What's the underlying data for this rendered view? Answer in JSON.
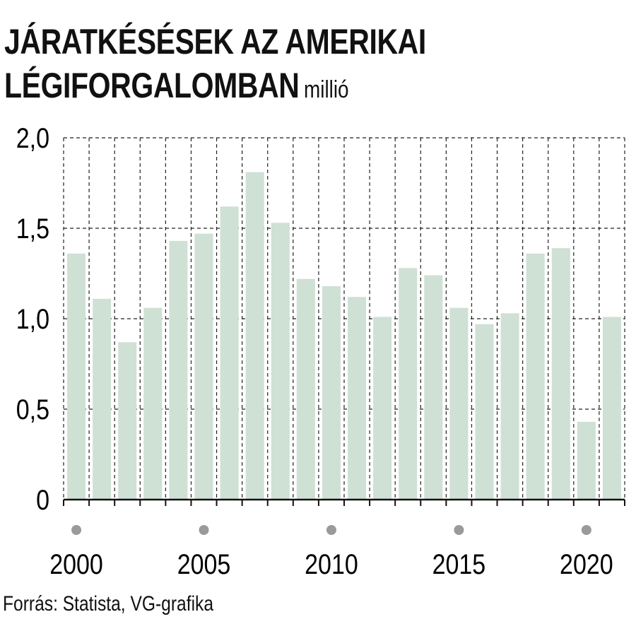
{
  "chart_data": {
    "type": "bar",
    "title_line1": "JÁRATKÉSÉSEK AZ AMERIKAI",
    "title_line2": "LÉGIFORGALOMBAN",
    "unit": "millió",
    "source": "Forrás: Statista, VG-grafika",
    "x": [
      2000,
      2001,
      2002,
      2003,
      2004,
      2005,
      2006,
      2007,
      2008,
      2009,
      2010,
      2011,
      2012,
      2013,
      2014,
      2015,
      2016,
      2017,
      2018,
      2019,
      2020,
      2021
    ],
    "values": [
      1.36,
      1.11,
      0.87,
      1.06,
      1.43,
      1.47,
      1.62,
      1.81,
      1.53,
      1.22,
      1.18,
      1.12,
      1.01,
      1.28,
      1.24,
      1.06,
      0.97,
      1.03,
      1.36,
      1.39,
      0.43,
      1.01
    ],
    "ylim": [
      0,
      2.0
    ],
    "yticks": [
      0,
      0.5,
      1.0,
      1.5,
      2.0
    ],
    "ytick_labels": [
      "0",
      "0,5",
      "1,0",
      "1,5",
      "2,0"
    ],
    "xtick_years": [
      2000,
      2005,
      2010,
      2015,
      2020
    ],
    "xtick_labels": [
      "2000",
      "2005",
      "2010",
      "2015",
      "2020"
    ],
    "grid": true,
    "colors": {
      "bar": "#cfe0d4",
      "grid": "#222222",
      "axis": "#111111",
      "marker": "#9a9a9a"
    }
  }
}
